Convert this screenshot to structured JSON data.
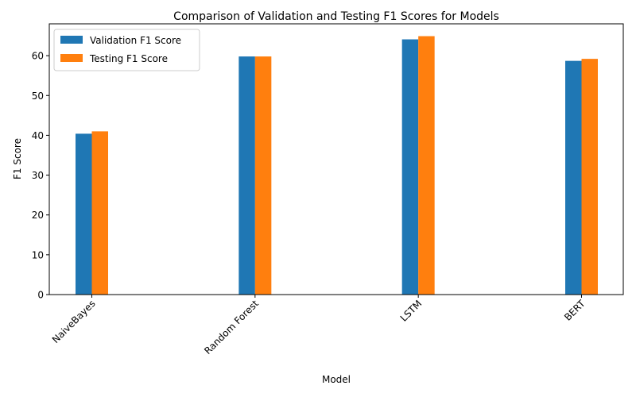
{
  "chart_data": {
    "type": "bar",
    "title": "Comparison of Validation and Testing F1 Scores for Models",
    "xlabel": "Model",
    "ylabel": "F1 Score",
    "categories": [
      "NaiveBayes",
      "Random Forest",
      "LSTM",
      "BERT"
    ],
    "series": [
      {
        "name": "Validation F1 Score",
        "color": "#1f77b4",
        "values": [
          40.4,
          59.8,
          64.1,
          58.7
        ]
      },
      {
        "name": "Testing F1 Score",
        "color": "#ff7f0e",
        "values": [
          41.0,
          59.8,
          64.9,
          59.2
        ]
      }
    ],
    "ylim": [
      0,
      68
    ],
    "yticks": [
      0,
      10,
      20,
      30,
      40,
      50,
      60
    ],
    "grid": false,
    "legend_position": "top-left"
  }
}
